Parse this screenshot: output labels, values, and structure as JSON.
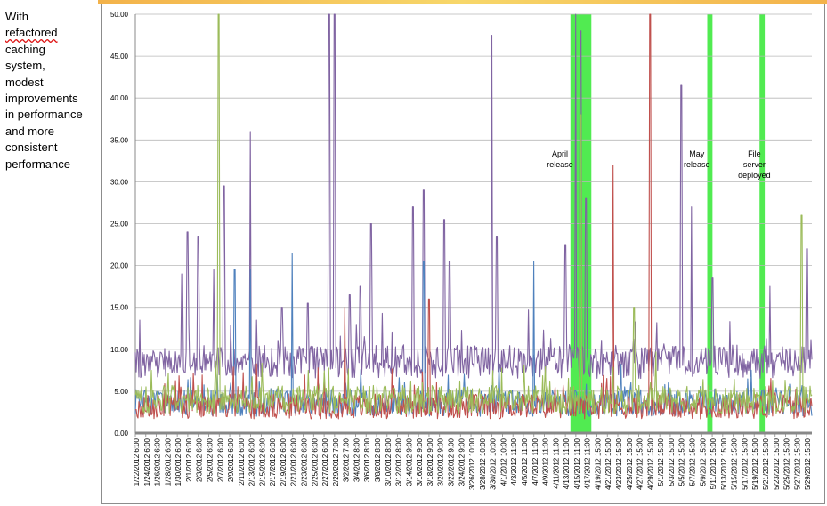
{
  "note": {
    "lines": [
      {
        "text": "With",
        "squiggle": false
      },
      {
        "text": "refactored",
        "squiggle": true
      },
      {
        "text": "caching",
        "squiggle": false
      },
      {
        "text": "system,",
        "squiggle": false
      },
      {
        "text": "modest",
        "squiggle": false
      },
      {
        "text": "improvements",
        "squiggle": false
      },
      {
        "text": "in performance",
        "squiggle": false
      },
      {
        "text": "and more",
        "squiggle": false
      },
      {
        "text": "consistent",
        "squiggle": false
      },
      {
        "text": "performance",
        "squiggle": false
      }
    ]
  },
  "chart_data": {
    "type": "line",
    "title": "",
    "xlabel": "",
    "ylabel": "",
    "ylim": [
      0,
      50
    ],
    "ytick_labels": [
      "0.00",
      "5.00",
      "10.00",
      "15.00",
      "20.00",
      "25.00",
      "30.00",
      "35.00",
      "40.00",
      "45.00",
      "50.00"
    ],
    "grid": true,
    "x_tick_labels": [
      "1/22/2012 6:00",
      "1/24/2012 6:00",
      "1/26/2012 6:00",
      "1/28/2012 6:00",
      "1/30/2012 6:00",
      "2/1/2012 6:00",
      "2/3/2012 6:00",
      "2/5/2012 6:00",
      "2/7/2012 6:00",
      "2/9/2012 6:00",
      "2/11/2012 6:00",
      "2/13/2012 6:00",
      "2/15/2012 6:00",
      "2/17/2012 6:00",
      "2/19/2012 6:00",
      "2/21/2012 6:00",
      "2/23/2012 6:00",
      "2/25/2012 6:00",
      "2/27/2012 6:00",
      "2/29/2012 7:00",
      "3/2/2012 7:00",
      "3/4/2012 8:00",
      "3/6/2012 8:00",
      "3/8/2012 8:00",
      "3/10/2012 8:00",
      "3/12/2012 8:00",
      "3/14/2012 9:00",
      "3/16/2012 9:00",
      "3/18/2012 9:00",
      "3/20/2012 9:00",
      "3/22/2012 9:00",
      "3/24/2012 9:00",
      "3/26/2012 10:00",
      "3/28/2012 10:00",
      "3/30/2012 10:00",
      "4/1/2012 10:00",
      "4/3/2012 11:00",
      "4/5/2012 11:00",
      "4/7/2012 11:00",
      "4/9/2012 11:00",
      "4/11/2012 11:00",
      "4/13/2012 11:00",
      "4/15/2012 11:00",
      "4/17/2012 11:00",
      "4/19/2012 15:00",
      "4/21/2012 15:00",
      "4/23/2012 15:00",
      "4/25/2012 15:00",
      "4/27/2012 15:00",
      "4/29/2012 15:00",
      "5/1/2012 15:00",
      "5/3/2012 15:00",
      "5/5/2012 15:00",
      "5/7/2012 15:00",
      "5/9/2012 15:00",
      "5/11/2012 15:00",
      "5/13/2012 15:00",
      "5/15/2012 15:00",
      "5/17/2012 15:00",
      "5/19/2012 15:00",
      "5/21/2012 15:00",
      "5/23/2012 15:00",
      "5/25/2012 15:00",
      "5/27/2012 15:00",
      "5/29/2012 15:00"
    ],
    "series": [
      {
        "color": "#8064a2",
        "baseline": 8.5,
        "noise": 2.0,
        "spikes": [
          [
            "1/31/2012 6:00",
            19
          ],
          [
            "2/1/2012 6:00",
            24
          ],
          [
            "2/3/2012 6:00",
            23.5
          ],
          [
            "2/6/2012 6:00",
            19.5
          ],
          [
            "2/8/2012 6:00",
            29.5
          ],
          [
            "2/13/2012 6:00",
            36
          ],
          [
            "2/19/2012 6:00",
            15
          ],
          [
            "2/24/2012 6:00",
            15.5
          ],
          [
            "2/28/2012 7:00",
            50
          ],
          [
            "2/29/2012 7:00",
            50
          ],
          [
            "3/3/2012 7:00",
            16.5
          ],
          [
            "3/5/2012 8:00",
            17.5
          ],
          [
            "3/7/2012 8:00",
            25
          ],
          [
            "3/15/2012 9:00",
            27
          ],
          [
            "3/17/2012 9:00",
            29
          ],
          [
            "3/21/2012 9:00",
            25.5
          ],
          [
            "3/22/2012 9:00",
            20.5
          ],
          [
            "3/30/2012 10:00",
            47.5
          ],
          [
            "3/31/2012 10:00",
            23.5
          ],
          [
            "4/13/2012 11:00",
            22.5
          ],
          [
            "4/15/2012 11:00",
            50
          ],
          [
            "4/16/2012 11:00",
            48
          ],
          [
            "4/17/2012 11:00",
            28
          ],
          [
            "5/5/2012 15:00",
            41.5
          ],
          [
            "5/7/2012 15:00",
            27
          ],
          [
            "5/11/2012 15:00",
            18.5
          ],
          [
            "5/22/2012 15:00",
            17.5
          ],
          [
            "5/29/2012 15:00",
            22
          ]
        ]
      },
      {
        "color": "#4f81bd",
        "baseline": 3.6,
        "noise": 1.6,
        "spikes": [
          [
            "2/10/2012 6:00",
            19.5
          ],
          [
            "2/13/2012 6:00",
            19.5
          ],
          [
            "2/21/2012 6:00",
            21.5
          ],
          [
            "3/17/2012 9:00",
            20.5
          ],
          [
            "4/7/2012 11:00",
            20.5
          ]
        ]
      },
      {
        "color": "#c0504d",
        "baseline": 3.2,
        "noise": 1.5,
        "spikes": [
          [
            "3/2/2012 7:00",
            15
          ],
          [
            "3/18/2012 9:00",
            16
          ],
          [
            "4/22/2012 15:00",
            32
          ],
          [
            "4/29/2012 15:00",
            50
          ]
        ]
      },
      {
        "color": "#9bbb59",
        "baseline": 4.0,
        "noise": 1.7,
        "spikes": [
          [
            "2/7/2012 6:00",
            50
          ],
          [
            "4/16/2012 11:00",
            38
          ],
          [
            "4/26/2012 15:00",
            15
          ],
          [
            "5/28/2012 15:00",
            26
          ]
        ]
      }
    ],
    "highlight_bands": [
      {
        "start": "4/14/2012 11:00",
        "end": "4/18/2012 11:00",
        "color": "#33e833"
      },
      {
        "start": "5/10/2012 15:00",
        "end": "5/11/2012 15:00",
        "color": "#33e833"
      },
      {
        "start": "5/20/2012 15:00",
        "end": "5/21/2012 15:00",
        "color": "#33e833"
      }
    ],
    "annotations": [
      {
        "lines": [
          "April",
          "release"
        ],
        "x": "4/12/2012 11:00",
        "y": 33.0
      },
      {
        "lines": [
          "May",
          "release"
        ],
        "x": "5/8/2012 15:00",
        "y": 33.0
      },
      {
        "lines": [
          "File",
          "server",
          "deployed"
        ],
        "x": "5/19/2012 15:00",
        "y": 33.0
      }
    ]
  }
}
